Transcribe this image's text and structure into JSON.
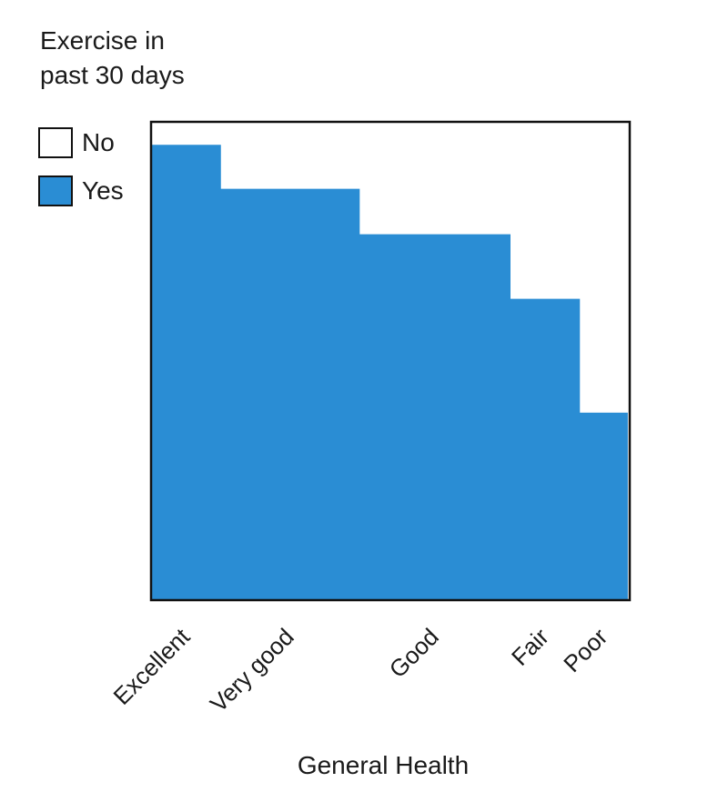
{
  "legend": {
    "title_line1": "Exercise in",
    "title_line2": "past 30 days",
    "items": [
      {
        "label": "No",
        "color": "#ffffff"
      },
      {
        "label": "Yes",
        "color": "#2a8dd4"
      }
    ]
  },
  "chart_data": {
    "type": "mosaic",
    "xlabel": "General Health",
    "categories": [
      "Excellent",
      "Very good",
      "Good",
      "Fair",
      "Poor"
    ],
    "category_share": [
      0.145,
      0.29,
      0.315,
      0.145,
      0.1
    ],
    "series": [
      {
        "name": "Yes",
        "color": "#2a8dd4",
        "values": [
          0.952,
          0.86,
          0.765,
          0.63,
          0.392
        ]
      },
      {
        "name": "No",
        "color": "#ffffff",
        "values": [
          0.048,
          0.14,
          0.235,
          0.37,
          0.608
        ]
      }
    ],
    "ylim": [
      0,
      1
    ]
  }
}
